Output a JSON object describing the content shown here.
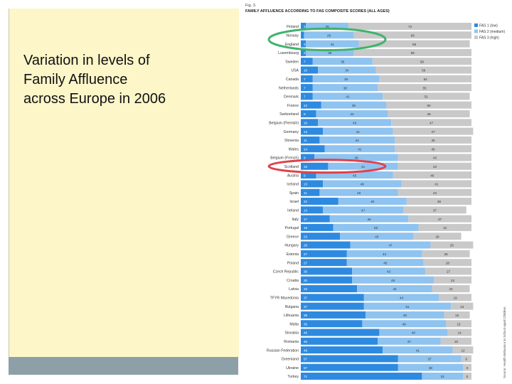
{
  "slide": {
    "title": "Variation in levels of\nFamily Affluence\nacross Europe in 2006"
  },
  "chart_data": {
    "type": "bar",
    "stacked": "percent",
    "orientation": "horizontal",
    "fig_label": "Fig. 3.",
    "title": "FAMILY AFFLUENCE ACCORDING TO FAS COMPOSITE SCORES (ALL AGES)",
    "legend_position": "right",
    "source": "Source: Health Behaviour in School-aged Children",
    "categories": [
      "Finland",
      "Norway",
      "England",
      "Luxembourg",
      "Sweden",
      "USA",
      "Canada",
      "Netherlands",
      "Denmark",
      "France",
      "Switzerland",
      "Belgium (Flemish)",
      "Germany",
      "Slovenia",
      "Wales",
      "Belgium (French)",
      "Scotland",
      "Austria",
      "Iceland",
      "Spain",
      "Israel",
      "Ireland",
      "Italy",
      "Portugal",
      "Greece",
      "Hungary",
      "Estonia",
      "Poland",
      "Czech Republic",
      "Croatia",
      "Latvia",
      "TFYR Macedonia",
      "Bulgaria",
      "Lithuania",
      "Malta",
      "Slovakia",
      "Romania",
      "Russian Federation",
      "Greenland",
      "Ukraine",
      "Turkey"
    ],
    "series": [
      {
        "name": "FAS 1 (low)",
        "color": "#2e8ae0",
        "values": [
          3,
          2,
          3,
          3,
          7,
          10,
          7,
          7,
          7,
          12,
          9,
          10,
          13,
          11,
          14,
          8,
          16,
          9,
          13,
          11,
          22,
          13,
          17,
          19,
          23,
          29,
          27,
          27,
          30,
          30,
          33,
          37,
          37,
          38,
          36,
          46,
          45,
          48,
          57,
          57,
          71
        ]
      },
      {
        "name": "FAS 2 (medium)",
        "color": "#8fc3f0",
        "values": [
          25,
          29,
          31,
          28,
          35,
          34,
          39,
          38,
          41,
          38,
          42,
          43,
          41,
          44,
          41,
          49,
          41,
          45,
          46,
          46,
          40,
          47,
          46,
          50,
          43,
          47,
          44,
          45,
          43,
          48,
          44,
          44,
          51,
          46,
          49,
          40,
          37,
          41,
          37,
          38,
          24
        ]
      },
      {
        "name": "FAS 3 (high)",
        "color": "#c9c9c9",
        "values": [
          72,
          69,
          65,
          69,
          58,
          56,
          54,
          55,
          51,
          50,
          48,
          47,
          47,
          45,
          45,
          43,
          43,
          46,
          41,
          43,
          38,
          37,
          37,
          31,
          28,
          25,
          28,
          28,
          27,
          22,
          22,
          19,
          13,
          15,
          15,
          14,
          18,
          12,
          6,
          5,
          5
        ]
      }
    ],
    "xlim": [
      0,
      100
    ],
    "annotations": [
      {
        "type": "ellipse",
        "color": "#3fb36b",
        "around": [
          "Norway",
          "England"
        ]
      },
      {
        "type": "ellipse",
        "color": "#e0414b",
        "around": [
          "Scotland"
        ]
      }
    ]
  }
}
